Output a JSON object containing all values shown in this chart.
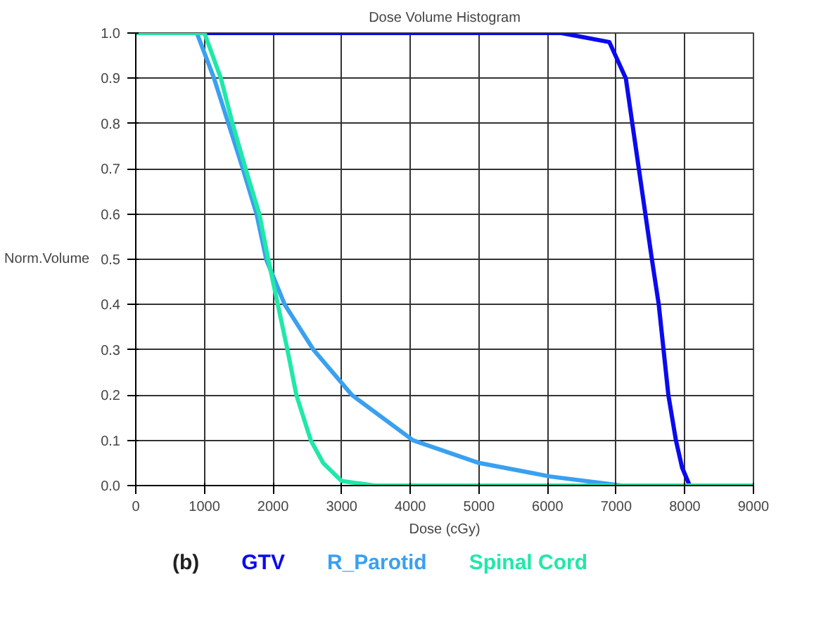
{
  "chart_data": {
    "type": "line",
    "title": "Dose Volume Histogram",
    "xlabel": "Dose (cGy)",
    "ylabel": "Norm.Volume",
    "xlim": [
      0,
      9000
    ],
    "xticks": [
      0,
      1000,
      2000,
      3000,
      4000,
      5000,
      6000,
      7000,
      8000,
      9000
    ],
    "ylim": [
      0,
      1
    ],
    "yticks": [
      {
        "value": 0,
        "label": "0.0"
      },
      0.1,
      0.2,
      0.3,
      0.4,
      0.5,
      0.6,
      0.7,
      0.8,
      0.9,
      {
        "value": 1,
        "label": "1.0"
      }
    ],
    "grid": true,
    "legend": "bottom",
    "marker": "none",
    "line_style": "solid",
    "annotations": [
      "(b)"
    ],
    "series": [
      {
        "name": "GTV",
        "color": "#0a0af0",
        "x": [
          0,
          6200,
          6900,
          7140,
          7330,
          7520,
          7620,
          7760,
          7870,
          7960,
          8070,
          9000
        ],
        "values": [
          1,
          1,
          0.98,
          0.9,
          0.7,
          0.5,
          0.4,
          0.2,
          0.1,
          0.04,
          0,
          0
        ]
      },
      {
        "name": "R_Parotid",
        "color": "#3aa0f0",
        "x": [
          0,
          890,
          1140,
          1350,
          1560,
          1760,
          1900,
          2170,
          2590,
          3150,
          4040,
          5000,
          6040,
          7080,
          9000
        ],
        "values": [
          1,
          1,
          0.9,
          0.8,
          0.7,
          0.6,
          0.5,
          0.4,
          0.3,
          0.2,
          0.1,
          0.05,
          0.02,
          0,
          0
        ]
      },
      {
        "name": "Spinal Cord",
        "color": "#20e8a8",
        "x": [
          0,
          1000,
          1240,
          1410,
          1600,
          1800,
          1930,
          2070,
          2210,
          2340,
          2550,
          2730,
          3000,
          3480,
          9000
        ],
        "values": [
          1,
          1,
          0.9,
          0.8,
          0.7,
          0.6,
          0.5,
          0.4,
          0.3,
          0.2,
          0.1,
          0.05,
          0.01,
          0,
          0
        ]
      }
    ]
  }
}
